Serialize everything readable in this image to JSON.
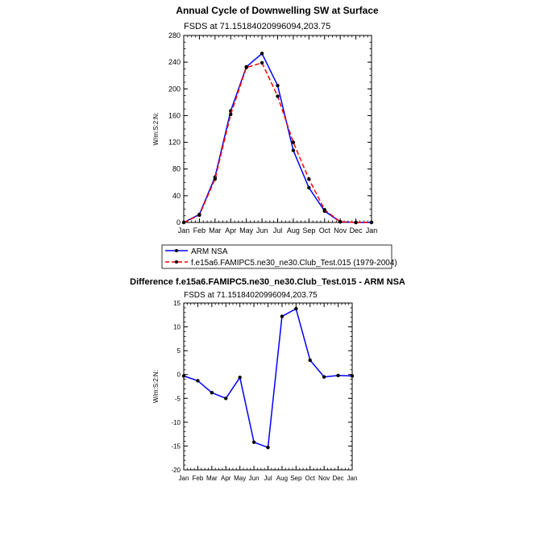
{
  "chart_data": [
    {
      "type": "line",
      "title": "Annual Cycle of Downwelling SW at Surface",
      "subtitle": "FSDS at 71.15184020996094,203.75",
      "ylabel": "W/m:S:2:N:",
      "categories": [
        "Jan",
        "Feb",
        "Mar",
        "Apr",
        "May",
        "Jun",
        "Jul",
        "Aug",
        "Sep",
        "Oct",
        "Nov",
        "Dec",
        "Jan"
      ],
      "ylim": [
        0,
        280
      ],
      "yticks": [
        "0",
        "40",
        "80",
        "120",
        "160",
        "200",
        "240",
        "280"
      ],
      "series": [
        {
          "name": "ARM NSA",
          "color": "#0000ff",
          "dash": "solid",
          "values": [
            0,
            12,
            68,
            167,
            233,
            253,
            205,
            108,
            52,
            17,
            1,
            0,
            0
          ]
        },
        {
          "name": "f.e15a6.FAMIPC5.ne30_ne30.Club_Test.015 (1979-2004)",
          "color": "#ff0000",
          "dash": "dashed",
          "values": [
            0,
            11,
            65,
            162,
            232,
            239,
            189,
            120,
            65,
            19,
            1,
            0,
            0
          ]
        }
      ],
      "legend": "below"
    },
    {
      "type": "line",
      "title": "Difference f.e15a6.FAMIPC5.ne30_ne30.Club_Test.015 - ARM NSA",
      "subtitle": "FSDS at 71.15184020996094,203.75",
      "ylabel": "W/m:S:2:N:",
      "categories": [
        "Jan",
        "Feb",
        "Mar",
        "Apr",
        "May",
        "Jun",
        "Jul",
        "Aug",
        "Sep",
        "Oct",
        "Nov",
        "Dec",
        "Jan"
      ],
      "ylim": [
        -20,
        15
      ],
      "yticks": [
        "-20",
        "-15",
        "-10",
        "-5",
        "0",
        "5",
        "10",
        "15"
      ],
      "series": [
        {
          "color": "#0000ff",
          "values": [
            -0.3,
            -1.3,
            -3.8,
            -5.0,
            -0.6,
            -14.2,
            -15.3,
            12.2,
            13.8,
            3.0,
            -0.5,
            -0.2,
            -0.3
          ]
        }
      ]
    }
  ]
}
